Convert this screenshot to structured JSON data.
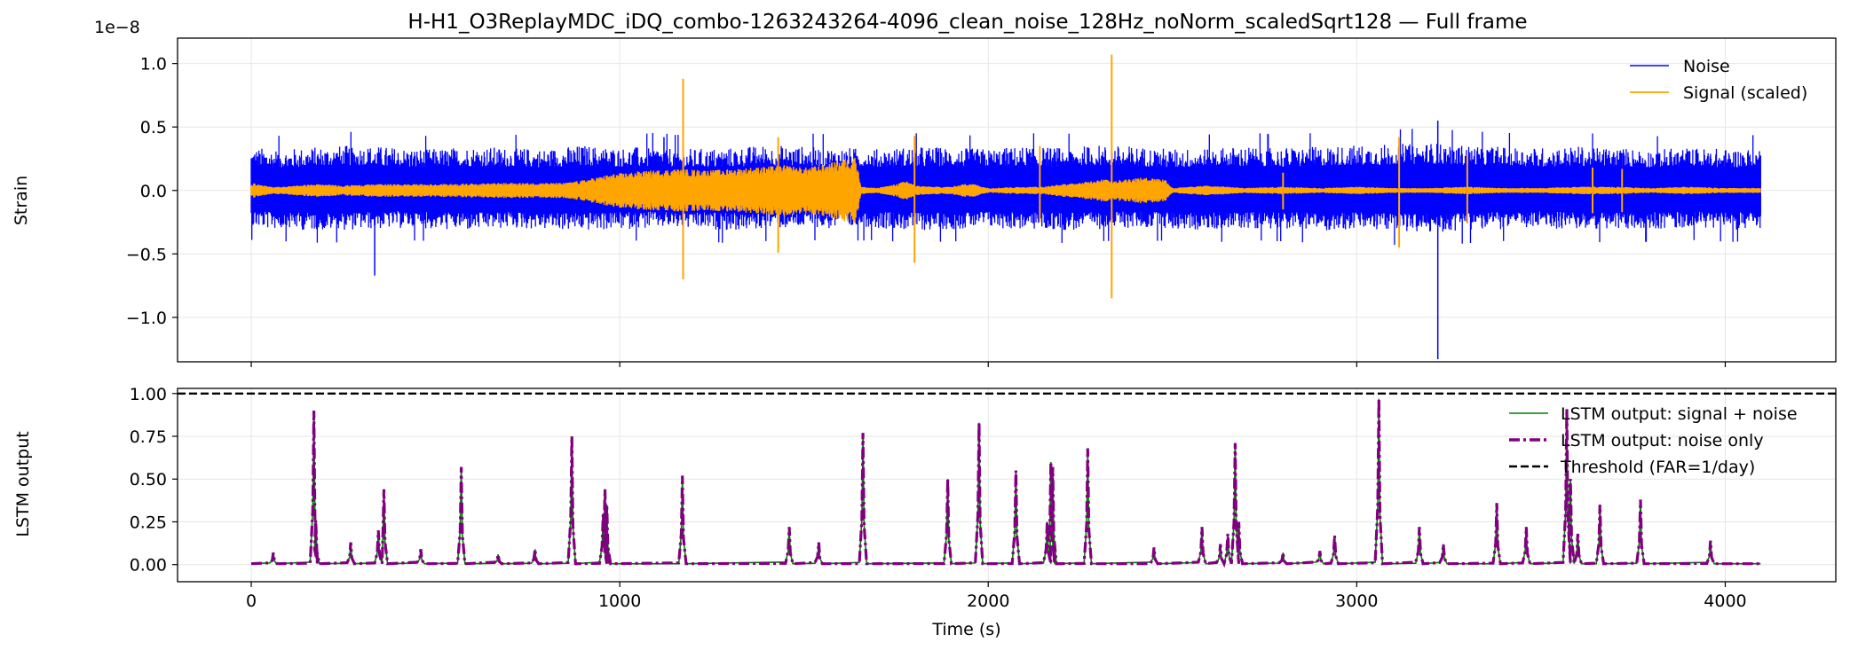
{
  "figure_title": "H-H1_O3ReplayMDC_iDQ_combo-1263243264-4096_clean_noise_128Hz_noNorm_scaledSqrt128 — Full frame",
  "colors": {
    "noise": "#0000ff",
    "signal": "#ffa500",
    "lstm_signal": "#008000",
    "lstm_noise": "#800080",
    "threshold": "#000000",
    "grid": "#e6e6e6"
  },
  "chart_data": [
    {
      "type": "line",
      "xlim": [
        -200,
        4300
      ],
      "ylim": [
        -1.35,
        1.2
      ],
      "y_exponent_label": "1e−8",
      "ylabel": "Strain",
      "xlabel": "",
      "grid": true,
      "legend_placement": "top-right",
      "x_ticks": [
        0,
        1000,
        2000,
        3000,
        4000
      ],
      "y_ticks": [
        1.0,
        0.5,
        0.0,
        -0.5,
        -1.0
      ],
      "y_tick_labels": [
        "1.0",
        "0.5",
        "0.0",
        "−0.5",
        "−1.0"
      ],
      "series": [
        {
          "name": "Noise",
          "kind": "band",
          "x": [
            0,
            100,
            200,
            300,
            400,
            500,
            600,
            700,
            800,
            900,
            1000,
            1100,
            1200,
            1300,
            1400,
            1500,
            1600,
            1700,
            1800,
            1900,
            2000,
            2100,
            2200,
            2300,
            2400,
            2500,
            2600,
            2700,
            2800,
            2900,
            3000,
            3100,
            3200,
            3300,
            3400,
            3500,
            3600,
            3700,
            3800,
            3900,
            4000,
            4096
          ],
          "upper": [
            0.34,
            0.33,
            0.35,
            0.36,
            0.34,
            0.33,
            0.35,
            0.34,
            0.33,
            0.36,
            0.34,
            0.35,
            0.33,
            0.34,
            0.36,
            0.35,
            0.34,
            0.33,
            0.35,
            0.34,
            0.33,
            0.35,
            0.34,
            0.36,
            0.35,
            0.33,
            0.34,
            0.35,
            0.34,
            0.35,
            0.36,
            0.37,
            0.38,
            0.36,
            0.35,
            0.34,
            0.35,
            0.34,
            0.33,
            0.34,
            0.33,
            0.34
          ],
          "lower": [
            -0.3,
            -0.31,
            -0.32,
            -0.31,
            -0.3,
            -0.31,
            -0.32,
            -0.3,
            -0.31,
            -0.32,
            -0.31,
            -0.3,
            -0.31,
            -0.32,
            -0.31,
            -0.3,
            -0.31,
            -0.3,
            -0.32,
            -0.31,
            -0.3,
            -0.31,
            -0.32,
            -0.31,
            -0.3,
            -0.31,
            -0.32,
            -0.3,
            -0.31,
            -0.32,
            -0.31,
            -0.33,
            -0.34,
            -0.32,
            -0.31,
            -0.3,
            -0.31,
            -0.32,
            -0.31,
            -0.3,
            -0.31,
            -0.32
          ],
          "spikes": [
            {
              "x": 335,
              "y": -0.67
            },
            {
              "x": 1120,
              "y": 0.42
            },
            {
              "x": 3220,
              "y": 0.55
            },
            {
              "x": 3220,
              "y": -1.33
            }
          ]
        },
        {
          "name": "Signal (scaled)",
          "kind": "envelope",
          "x": [
            0,
            50,
            90,
            120,
            180,
            250,
            350,
            500,
            700,
            850,
            900,
            930,
            980,
            1050,
            1150,
            1250,
            1350,
            1450,
            1500,
            1550,
            1600,
            1640,
            1655,
            1700,
            1750,
            1780,
            1800,
            1850,
            1900,
            1950,
            2000,
            2100,
            2150,
            2200,
            2250,
            2300,
            2350,
            2400,
            2450,
            2480,
            2500,
            2550,
            2600,
            2650,
            2700,
            2800,
            2900,
            3000,
            3100,
            3200,
            3300,
            3400,
            3500,
            3600,
            3700,
            3800,
            3900,
            4000,
            4096
          ],
          "amp": [
            0.06,
            0.03,
            0.03,
            0.04,
            0.05,
            0.04,
            0.05,
            0.05,
            0.06,
            0.06,
            0.08,
            0.1,
            0.13,
            0.15,
            0.17,
            0.16,
            0.18,
            0.2,
            0.18,
            0.2,
            0.24,
            0.27,
            0.03,
            0.02,
            0.05,
            0.08,
            0.04,
            0.03,
            0.03,
            0.06,
            0.02,
            0.03,
            0.03,
            0.05,
            0.06,
            0.09,
            0.08,
            0.1,
            0.1,
            0.09,
            0.02,
            0.03,
            0.04,
            0.03,
            0.02,
            0.03,
            0.02,
            0.03,
            0.02,
            0.02,
            0.03,
            0.02,
            0.02,
            0.03,
            0.03,
            0.02,
            0.03,
            0.02,
            0.02
          ],
          "spikes": [
            {
              "x": 1172,
              "hi": 0.88,
              "lo": -0.7
            },
            {
              "x": 1430,
              "hi": 0.42,
              "lo": -0.49
            },
            {
              "x": 1800,
              "hi": 0.43,
              "lo": -0.57
            },
            {
              "x": 2140,
              "hi": 0.35,
              "lo": -0.25
            },
            {
              "x": 2335,
              "hi": 1.07,
              "lo": -0.85
            },
            {
              "x": 2800,
              "hi": 0.14,
              "lo": -0.15
            },
            {
              "x": 3115,
              "hi": 0.42,
              "lo": -0.45
            },
            {
              "x": 3300,
              "hi": 0.28,
              "lo": -0.26
            },
            {
              "x": 3640,
              "hi": 0.18,
              "lo": -0.18
            },
            {
              "x": 3720,
              "hi": 0.17,
              "lo": -0.17
            }
          ]
        }
      ]
    },
    {
      "type": "line",
      "xlim": [
        -200,
        4300
      ],
      "ylim": [
        -0.1,
        1.03
      ],
      "xlabel": "Time (s)",
      "ylabel": "LSTM output",
      "grid": true,
      "legend_placement": "top-right",
      "x_ticks": [
        0,
        1000,
        2000,
        3000,
        4000
      ],
      "x_tick_labels": [
        "0",
        "1000",
        "2000",
        "3000",
        "4000"
      ],
      "y_ticks": [
        1.0,
        0.75,
        0.5,
        0.25,
        0.0
      ],
      "y_tick_labels": [
        "1.00",
        "0.75",
        "0.50",
        "0.25",
        "0.00"
      ],
      "threshold": 1.0,
      "x_range": [
        0,
        4096
      ],
      "peaks": [
        {
          "x": 60,
          "y": 0.07
        },
        {
          "x": 170,
          "y": 0.9
        },
        {
          "x": 175,
          "y": 0.26
        },
        {
          "x": 270,
          "y": 0.13
        },
        {
          "x": 345,
          "y": 0.2
        },
        {
          "x": 360,
          "y": 0.44
        },
        {
          "x": 460,
          "y": 0.09
        },
        {
          "x": 570,
          "y": 0.57
        },
        {
          "x": 670,
          "y": 0.06
        },
        {
          "x": 770,
          "y": 0.09
        },
        {
          "x": 870,
          "y": 0.75
        },
        {
          "x": 955,
          "y": 0.3
        },
        {
          "x": 960,
          "y": 0.44
        },
        {
          "x": 965,
          "y": 0.35
        },
        {
          "x": 1170,
          "y": 0.52
        },
        {
          "x": 1460,
          "y": 0.22
        },
        {
          "x": 1540,
          "y": 0.13
        },
        {
          "x": 1660,
          "y": 0.77
        },
        {
          "x": 1890,
          "y": 0.5
        },
        {
          "x": 1975,
          "y": 0.83
        },
        {
          "x": 2075,
          "y": 0.55
        },
        {
          "x": 2160,
          "y": 0.25
        },
        {
          "x": 2170,
          "y": 0.6
        },
        {
          "x": 2175,
          "y": 0.57
        },
        {
          "x": 2270,
          "y": 0.68
        },
        {
          "x": 2450,
          "y": 0.1
        },
        {
          "x": 2580,
          "y": 0.22
        },
        {
          "x": 2630,
          "y": 0.12
        },
        {
          "x": 2650,
          "y": 0.18
        },
        {
          "x": 2670,
          "y": 0.71
        },
        {
          "x": 2680,
          "y": 0.25
        },
        {
          "x": 2800,
          "y": 0.07
        },
        {
          "x": 2900,
          "y": 0.08
        },
        {
          "x": 2940,
          "y": 0.17
        },
        {
          "x": 3060,
          "y": 0.97
        },
        {
          "x": 3170,
          "y": 0.22
        },
        {
          "x": 3235,
          "y": 0.12
        },
        {
          "x": 3380,
          "y": 0.36
        },
        {
          "x": 3460,
          "y": 0.22
        },
        {
          "x": 3570,
          "y": 0.91
        },
        {
          "x": 3580,
          "y": 0.5
        },
        {
          "x": 3600,
          "y": 0.18
        },
        {
          "x": 3660,
          "y": 0.35
        },
        {
          "x": 3770,
          "y": 0.38
        },
        {
          "x": 3960,
          "y": 0.14
        }
      ],
      "series": [
        {
          "name": "LSTM output: signal + noise",
          "style": "solid"
        },
        {
          "name": "LSTM output: noise only",
          "style": "dashdot"
        },
        {
          "name": "Threshold (FAR=1/day)",
          "style": "dashed"
        }
      ]
    }
  ]
}
